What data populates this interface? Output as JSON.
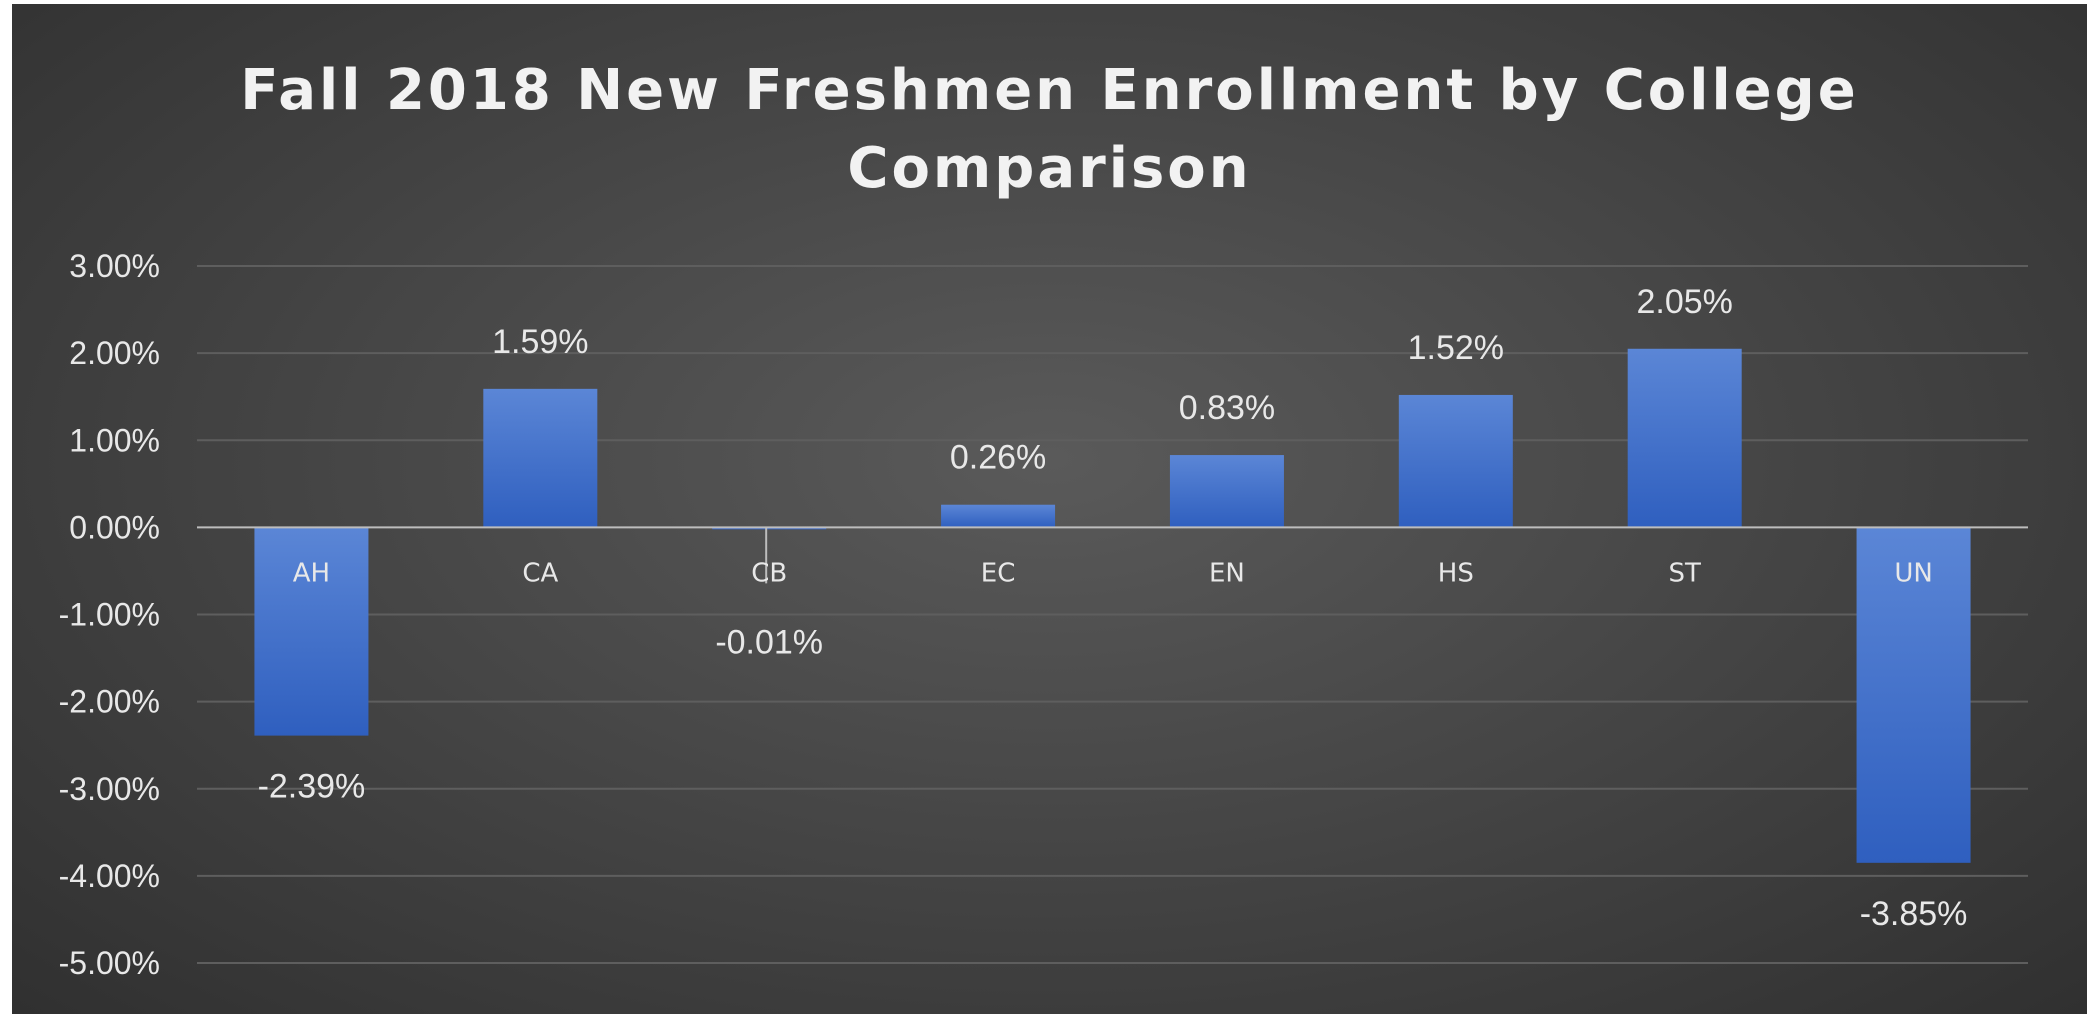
{
  "chart_data": {
    "type": "bar",
    "title": "Fall 2018 New Freshmen Enrollment by College Comparison",
    "title_lines": [
      "Fall 2018 New Freshmen Enrollment by College",
      "Comparison"
    ],
    "categories": [
      "AH",
      "CA",
      "CB",
      "EC",
      "EN",
      "HS",
      "ST",
      "UN"
    ],
    "values": [
      -2.39,
      1.59,
      -0.01,
      0.26,
      0.83,
      1.52,
      2.05,
      -3.85
    ],
    "data_labels": [
      "-2.39%",
      "1.59%",
      "-0.01%",
      "0.26%",
      "0.83%",
      "1.52%",
      "2.05%",
      "-3.85%"
    ],
    "yticks": [
      3,
      2,
      1,
      0,
      -1,
      -2,
      -3,
      -4,
      -5
    ],
    "ytick_labels": [
      "3.00%",
      "2.00%",
      "1.00%",
      "0.00%",
      "-1.00%",
      "-2.00%",
      "-3.00%",
      "-4.00%",
      "-5.00%"
    ],
    "ylim": [
      -5,
      3
    ],
    "xlabel": "",
    "ylabel": "",
    "grid": true,
    "legend": "none",
    "colors": {
      "bar_top": "#5b86d6",
      "bar_bottom": "#2f5fbf",
      "gridline": "#5e5e5e",
      "zero_line": "#bdbdbd",
      "text": "#e8e8e8"
    }
  }
}
